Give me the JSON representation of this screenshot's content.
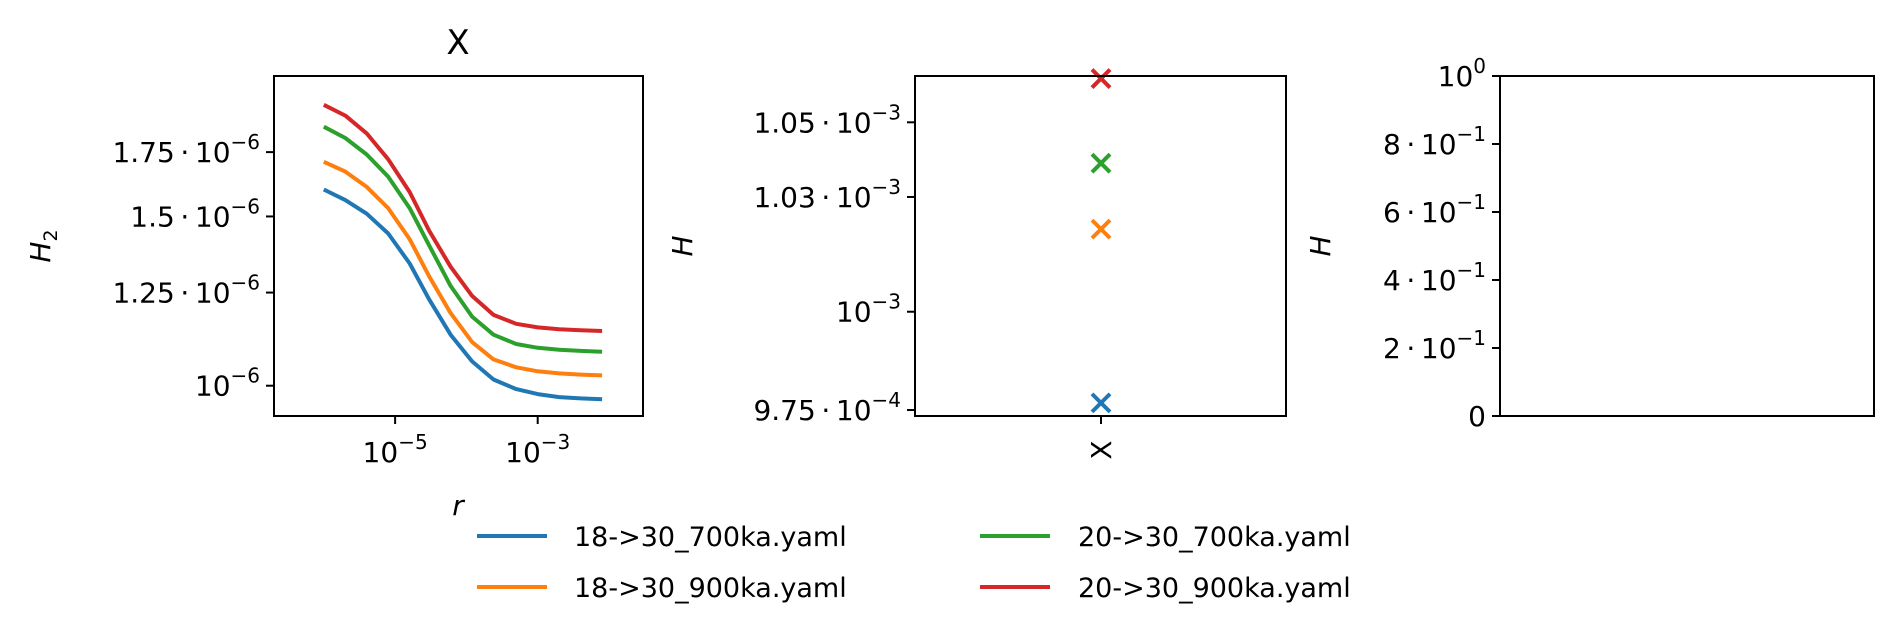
{
  "chart_data": [
    {
      "type": "line",
      "title": "X",
      "xlabel": "r",
      "ylabel": "H_2",
      "xscale": "log",
      "yscale": "log",
      "xlim": [
        2e-07,
        0.03
      ],
      "ylim": [
        9.3e-07,
        2.1e-06
      ],
      "xticks": [
        {
          "value": 1e-05,
          "base": "10",
          "exp": "−5"
        },
        {
          "value": 0.001,
          "base": "10",
          "exp": "−3"
        }
      ],
      "yticks": [
        {
          "value": 1e-06,
          "mant": "",
          "base": "10",
          "exp": "−6"
        },
        {
          "value": 1.25e-06,
          "mant": "1.25",
          "base": "10",
          "exp": "−6"
        },
        {
          "value": 1.5e-06,
          "mant": "1.5",
          "base": "10",
          "exp": "−6"
        },
        {
          "value": 1.75e-06,
          "mant": "1.75",
          "base": "10",
          "exp": "−6"
        }
      ],
      "x": [
        1e-06,
        2e-06,
        4e-06,
        8e-06,
        1.6e-05,
        3e-05,
        6e-05,
        0.00012,
        0.00024,
        0.0005,
        0.001,
        0.002,
        0.004,
        0.008
      ],
      "series": [
        {
          "name": "18->30_700ka.yaml",
          "color": "#1f77b4",
          "values": [
            1.6e-06,
            1.56e-06,
            1.51e-06,
            1.44e-06,
            1.34e-06,
            1.23e-06,
            1.13e-06,
            1.06e-06,
            1.015e-06,
            9.92e-07,
            9.8e-07,
            9.73e-07,
            9.7e-07,
            9.68e-07
          ]
        },
        {
          "name": "18->30_900ka.yaml",
          "color": "#ff7f0e",
          "values": [
            1.71e-06,
            1.67e-06,
            1.61e-06,
            1.53e-06,
            1.42e-06,
            1.3e-06,
            1.19e-06,
            1.11e-06,
            1.065e-06,
            1.045e-06,
            1.035e-06,
            1.03e-06,
            1.027e-06,
            1.025e-06
          ]
        },
        {
          "name": "20->30_700ka.yaml",
          "color": "#2ca02c",
          "values": [
            1.86e-06,
            1.81e-06,
            1.74e-06,
            1.65e-06,
            1.53e-06,
            1.4e-06,
            1.27e-06,
            1.18e-06,
            1.13e-06,
            1.105e-06,
            1.095e-06,
            1.09e-06,
            1.087e-06,
            1.085e-06
          ]
        },
        {
          "name": "20->30_900ka.yaml",
          "color": "#d62728",
          "values": [
            1.96e-06,
            1.91e-06,
            1.83e-06,
            1.72e-06,
            1.59e-06,
            1.45e-06,
            1.33e-06,
            1.24e-06,
            1.185e-06,
            1.16e-06,
            1.15e-06,
            1.145e-06,
            1.142e-06,
            1.14e-06
          ]
        }
      ]
    },
    {
      "type": "scatter",
      "xlabel": "",
      "ylabel": "H",
      "yscale": "log",
      "categories": [
        "X"
      ],
      "ylim": [
        0.0009735,
        0.0010626
      ],
      "yticks": [
        {
          "value": 0.000975,
          "mant": "9.75",
          "base": "10",
          "exp": "−4"
        },
        {
          "value": 0.001,
          "mant": "",
          "base": "10",
          "exp": "−3"
        },
        {
          "value": 0.00103,
          "mant": "1.03",
          "base": "10",
          "exp": "−3"
        },
        {
          "value": 0.00105,
          "mant": "1.05",
          "base": "10",
          "exp": "−3"
        }
      ],
      "series": [
        {
          "name": "18->30_700ka.yaml",
          "color": "#1f77b4",
          "values": [
            0.0009768
          ]
        },
        {
          "name": "18->30_900ka.yaml",
          "color": "#ff7f0e",
          "values": [
            0.0010215
          ]
        },
        {
          "name": "20->30_700ka.yaml",
          "color": "#2ca02c",
          "values": [
            0.001039
          ]
        },
        {
          "name": "20->30_900ka.yaml",
          "color": "#d62728",
          "values": [
            0.0010619
          ]
        }
      ]
    },
    {
      "type": "line",
      "xlabel": "",
      "ylabel": "H",
      "ylim": [
        0,
        1
      ],
      "yticks": [
        {
          "value": 0,
          "mant": "0",
          "base": "",
          "exp": ""
        },
        {
          "value": 0.2,
          "mant": "2",
          "base": "10",
          "exp": "−1"
        },
        {
          "value": 0.4,
          "mant": "4",
          "base": "10",
          "exp": "−1"
        },
        {
          "value": 0.6,
          "mant": "6",
          "base": "10",
          "exp": "−1"
        },
        {
          "value": 0.8,
          "mant": "8",
          "base": "10",
          "exp": "−1"
        },
        {
          "value": 1.0,
          "mant": "",
          "base": "10",
          "exp": "0"
        }
      ],
      "series": []
    }
  ],
  "legend": {
    "position": "bottom-center",
    "entries": [
      {
        "label": "18->30_700ka.yaml",
        "color": "#1f77b4"
      },
      {
        "label": "18->30_900ka.yaml",
        "color": "#ff7f0e"
      },
      {
        "label": "20->30_700ka.yaml",
        "color": "#2ca02c"
      },
      {
        "label": "20->30_900ka.yaml",
        "color": "#d62728"
      }
    ]
  }
}
